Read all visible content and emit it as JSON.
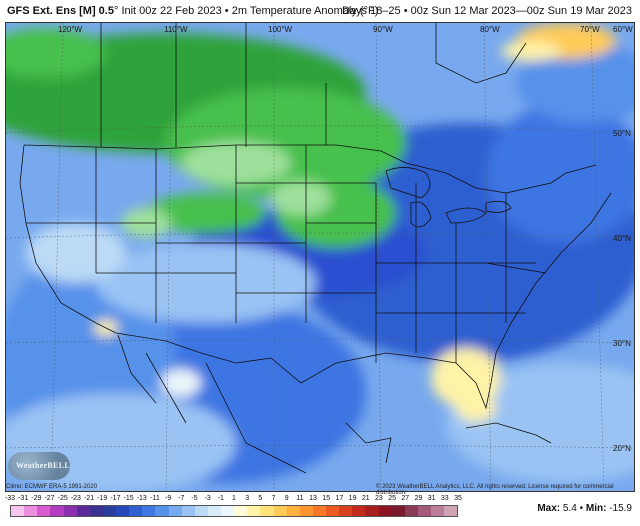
{
  "header": {
    "model": "GFS Ext. Ens [M] 0.5",
    "init": "Init 00z 22 Feb 2023",
    "variable": "2m Temperature Anomaly (°F)",
    "valid": "Days 18–25 • 00z Sun 12 Mar 2023—00z Sun 19 Mar 2023"
  },
  "map": {
    "longitude_labels": [
      "120°W",
      "110°W",
      "100°W",
      "90°W",
      "80°W",
      "70°W",
      "60°W"
    ],
    "latitude_labels": [
      "50°N",
      "40°N",
      "30°N",
      "20°N"
    ]
  },
  "footer": {
    "climo": "Climo: ECMWF ERA-5 1991-2020",
    "copyright": "© 2023 WeatherBELL Analytics, LLC. All rights reserved. License required for commercial distribution.",
    "logo_text": "WeatherBELL"
  },
  "legend": {
    "tick_labels": [
      "-33",
      "-31",
      "-29",
      "-27",
      "-25",
      "-23",
      "-21",
      "-19",
      "-17",
      "-15",
      "-13",
      "-11",
      "-9",
      "-7",
      "-5",
      "-3",
      "-1",
      "1",
      "3",
      "5",
      "7",
      "9",
      "11",
      "13",
      "15",
      "17",
      "19",
      "21",
      "23",
      "25",
      "27",
      "29",
      "31",
      "33",
      "35"
    ],
    "colors": [
      "#f6c6ef",
      "#ee8fe1",
      "#d95bd0",
      "#b33cc0",
      "#8a2fb0",
      "#5c2a9c",
      "#3b2f8f",
      "#2a3c9c",
      "#2549b8",
      "#2f5fd0",
      "#3f78e0",
      "#5691ea",
      "#74aaf0",
      "#9ac3f4",
      "#bcdaf6",
      "#d7ebf8",
      "#ecf6fb",
      "#fffbd8",
      "#fff3a8",
      "#ffe27a",
      "#ffcb58",
      "#ffb03f",
      "#ff9431",
      "#f97927",
      "#ec5b22",
      "#d8411f",
      "#c22b1c",
      "#a81d1d",
      "#8c1420",
      "#7a1a2e",
      "#8a3a55",
      "#a35a78",
      "#bb7d97",
      "#cfa2b4"
    ]
  },
  "stats": {
    "max_label": "Max:",
    "max_value": "5.4",
    "min_label": "Min:",
    "min_value": "-15.9",
    "separator": "•"
  },
  "colors": {
    "green_dark": "#2fa33a",
    "green_mid": "#46c04e",
    "green_light": "#9ee09b",
    "blue_deep": "#2a4fd0",
    "blue_mid": "#3c74e2",
    "blue_light": "#78a9ee",
    "blue_pale": "#b9d8f6",
    "yellow": "#fff3a8",
    "orange": "#ffcb58"
  }
}
